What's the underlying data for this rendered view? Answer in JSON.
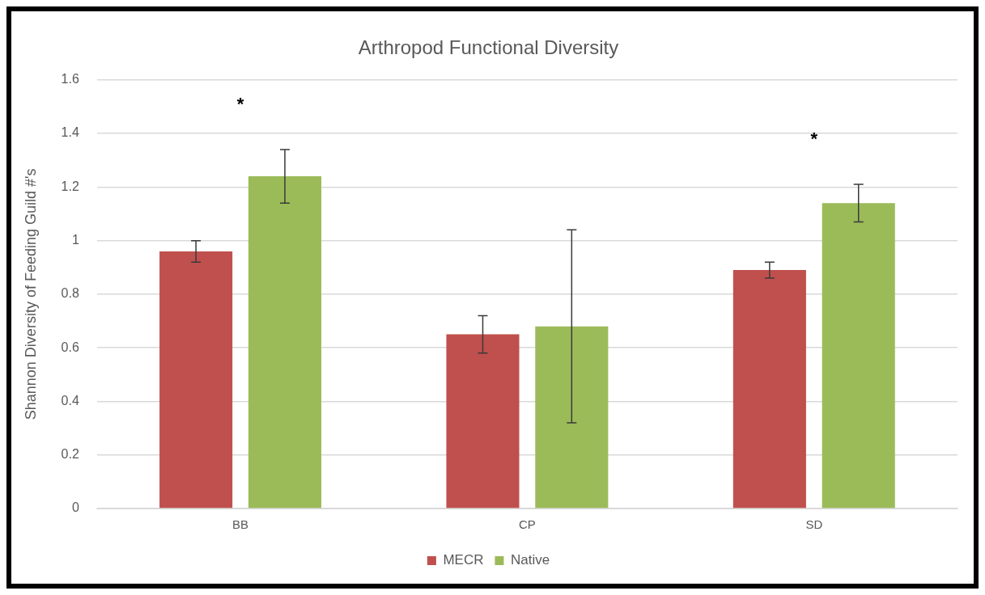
{
  "chart_data": {
    "type": "bar",
    "title": "Arthropod Functional Diversity",
    "ylabel": "Shannon Diversity of Feeding Guild #'s",
    "categories": [
      "BB",
      "CP",
      "SD"
    ],
    "series": [
      {
        "name": "MECR",
        "color": "#c0504d",
        "values": [
          0.96,
          0.65,
          0.89
        ],
        "errors": [
          0.04,
          0.07,
          0.03
        ]
      },
      {
        "name": "Native",
        "color": "#9bbb59",
        "values": [
          1.24,
          0.68,
          1.14
        ],
        "errors": [
          0.1,
          0.36,
          0.07
        ]
      }
    ],
    "ylim": [
      0,
      1.6
    ],
    "yticks": [
      0,
      0.2,
      0.4,
      0.6,
      0.8,
      1,
      1.2,
      1.4,
      1.6
    ],
    "grid": "y",
    "legend": "bottom",
    "annotations": [
      "*",
      "*"
    ]
  }
}
